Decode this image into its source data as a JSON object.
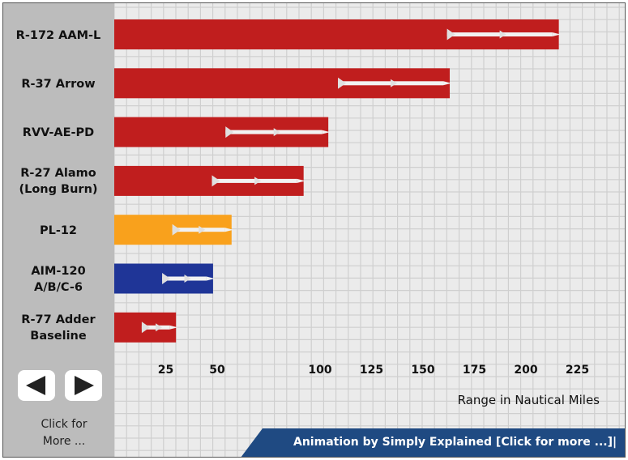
{
  "chart_data": {
    "type": "bar",
    "orientation": "horizontal",
    "categories": [
      "R-172 AAM-L",
      "R-37 Arrow",
      "RVV-AE-PD",
      "R-27 Alamo\n(Long Burn)",
      "PL-12",
      "AIM-120\nA/B/C-6",
      "R-77 Adder\nBaseline"
    ],
    "values": [
      216,
      163,
      104,
      92,
      57,
      48,
      30
    ],
    "colors": [
      "#c01e1e",
      "#c01e1e",
      "#c01e1e",
      "#c01e1e",
      "#f9a11c",
      "#1f3597",
      "#c01e1e"
    ],
    "xticks": [
      25,
      50,
      100,
      125,
      150,
      175,
      200,
      225
    ],
    "xlabel": "Range in Nautical Miles",
    "grid": true
  },
  "nav": {
    "prev_icon": "left-arrow-icon",
    "next_icon": "right-arrow-icon",
    "click_more": "Click for\n  More ..."
  },
  "credit": {
    "text": "Animation by Simply Explained [Click for more ...]|"
  }
}
